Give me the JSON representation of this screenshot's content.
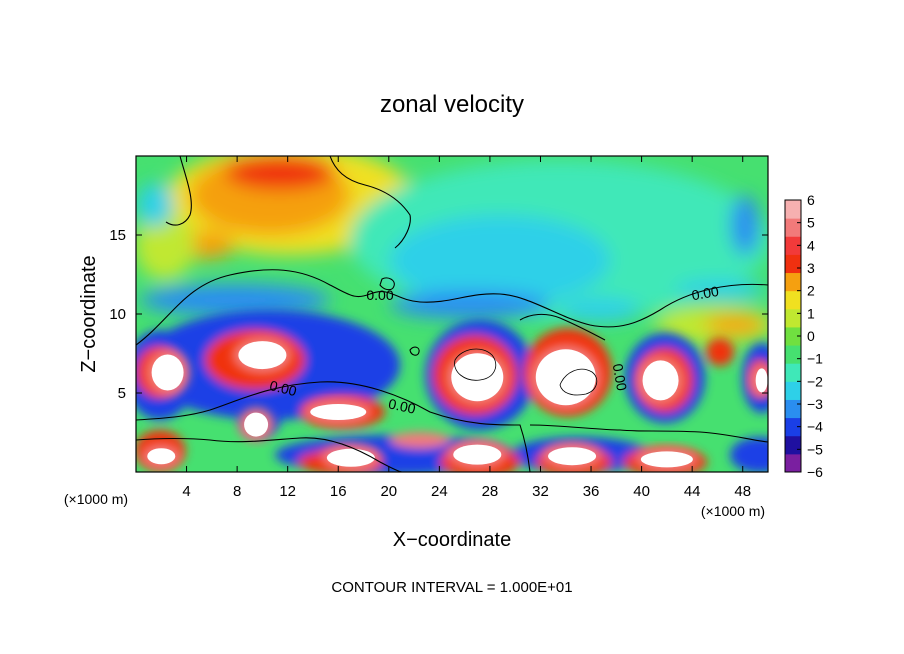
{
  "chart_data": {
    "type": "heatmap",
    "title": "zonal velocity",
    "xlabel": "X−coordinate",
    "ylabel": "Z−coordinate",
    "x_unit_left": "(×1000 m)",
    "x_unit_right": "(×1000 m)",
    "footer": "CONTOUR INTERVAL = 1.000E+01",
    "xlim": [
      0,
      50
    ],
    "ylim": [
      0,
      20
    ],
    "x_ticks": [
      "4",
      "8",
      "12",
      "16",
      "20",
      "24",
      "28",
      "32",
      "36",
      "40",
      "44",
      "48"
    ],
    "y_ticks": [
      "5",
      "10",
      "15"
    ],
    "contour_labels": [
      "0.00",
      "0.00",
      "0.00",
      "0.00",
      "0.00"
    ],
    "colorbar": {
      "min": -6,
      "max": 6,
      "tick_labels": [
        "6",
        "5",
        "4",
        "3",
        "2",
        "1",
        "0",
        "−1",
        "−2",
        "−3",
        "−4",
        "−5",
        "−6"
      ],
      "colors": [
        "#7a1fa0",
        "#1f10a0",
        "#1a3fe6",
        "#2a8ef0",
        "#2ed0e8",
        "#3fe8b8",
        "#46e070",
        "#70e040",
        "#c0e830",
        "#f0e020",
        "#f5a010",
        "#f03010",
        "#f23a3a",
        "#f27a7a",
        "#f6b0b0"
      ]
    },
    "features": [
      {
        "kind": "jet-core",
        "sign": "positive",
        "x": 10,
        "z": 7.4
      },
      {
        "kind": "jet-core",
        "sign": "positive",
        "x": 16,
        "z": 3.8
      },
      {
        "kind": "jet-core",
        "sign": "positive",
        "x": 27,
        "z": 6
      },
      {
        "kind": "jet-core",
        "sign": "positive",
        "x": 34,
        "z": 6
      },
      {
        "kind": "jet-core",
        "sign": "positive",
        "x": 41.5,
        "z": 5.8
      },
      {
        "kind": "jet-core",
        "sign": "positive",
        "x": 2.5,
        "z": 6.3
      },
      {
        "kind": "jet-core",
        "sign": "positive",
        "x": 49.5,
        "z": 5.8
      },
      {
        "kind": "jet-core",
        "sign": "positive",
        "x": 17,
        "z": 0.9
      },
      {
        "kind": "jet-core",
        "sign": "positive",
        "x": 27,
        "z": 1.1
      },
      {
        "kind": "jet-core",
        "sign": "positive",
        "x": 34.5,
        "z": 1
      },
      {
        "kind": "jet-core",
        "sign": "positive",
        "x": 42,
        "z": 0.8
      },
      {
        "kind": "jet-core",
        "sign": "positive",
        "x": 2,
        "z": 1
      },
      {
        "kind": "jet-core",
        "sign": "positive",
        "x": 9.5,
        "z": 3
      },
      {
        "kind": "warm-region",
        "sign": "positive",
        "x": 11,
        "z": 16.5
      },
      {
        "kind": "weak-negative",
        "sign": "negative",
        "x": 36,
        "z": 14
      }
    ]
  }
}
